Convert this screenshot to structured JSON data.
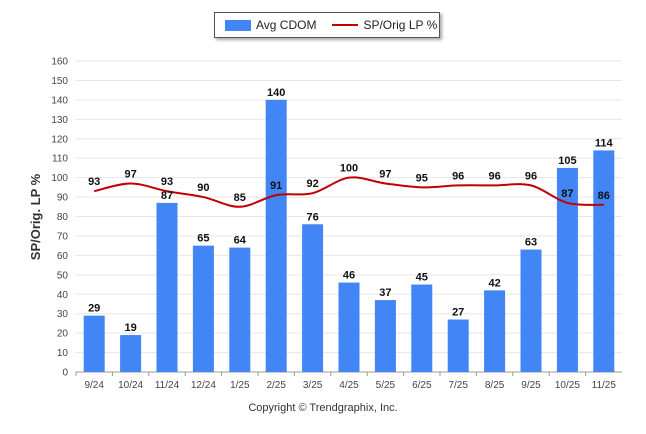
{
  "chart_data": {
    "type": "bar",
    "categories": [
      "9/24",
      "10/24",
      "11/24",
      "12/24",
      "1/25",
      "2/25",
      "3/25",
      "4/25",
      "5/25",
      "6/25",
      "7/25",
      "8/25",
      "9/25",
      "10/25",
      "11/25"
    ],
    "series": [
      {
        "name": "Avg CDOM",
        "kind": "bar",
        "color": "#4285f4",
        "values": [
          29,
          19,
          87,
          65,
          64,
          140,
          76,
          46,
          37,
          45,
          27,
          42,
          63,
          105,
          114
        ]
      },
      {
        "name": "SP/Orig LP %",
        "kind": "line",
        "color": "#c00000",
        "values": [
          93,
          97,
          93,
          90,
          85,
          91,
          92,
          100,
          97,
          95,
          96,
          96,
          96,
          87,
          86
        ]
      }
    ],
    "ylabel": "SP/Orig. LP %",
    "xlabel": "",
    "ylim": [
      0,
      160
    ],
    "yticks": [
      0,
      10,
      20,
      30,
      40,
      50,
      60,
      70,
      80,
      90,
      100,
      110,
      120,
      130,
      140,
      150,
      160
    ],
    "grid": true,
    "legend": "top-center"
  },
  "footer": {
    "copyright": "Copyright © Trendgraphix, Inc."
  }
}
